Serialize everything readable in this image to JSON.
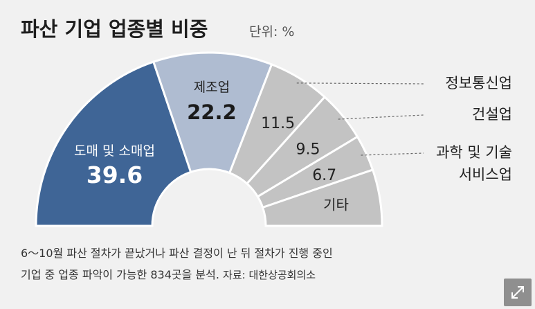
{
  "chart_data": {
    "type": "pie",
    "variant": "semicircle-donut",
    "title": "파산 기업 업종별 비중",
    "unit_label": "단위: %",
    "slices": [
      {
        "name": "도매 및 소매업",
        "value": 39.6,
        "value_label": "39.6",
        "color": "#3f6596",
        "label_style": "inside"
      },
      {
        "name": "제조업",
        "value": 22.2,
        "value_label": "22.2",
        "color": "#afbcd1",
        "label_style": "inside"
      },
      {
        "name": "정보통신업",
        "value": 11.5,
        "value_label": "11.5",
        "color": "#c3c3c3",
        "label_style": "external"
      },
      {
        "name": "건설업",
        "value": 9.5,
        "value_label": "9.5",
        "color": "#c3c3c3",
        "label_style": "external"
      },
      {
        "name": "과학 및 기술 서비스업",
        "name_lines": [
          "과학 및 기술",
          "서비스업"
        ],
        "value": 6.7,
        "value_label": "6.7",
        "color": "#c3c3c3",
        "label_style": "external"
      },
      {
        "name": "기타",
        "value": 10.5,
        "value_label": "",
        "color": "#c3c3c3",
        "label_style": "inside-name"
      }
    ]
  },
  "notes": {
    "line1": "6～10월 파산 절차가 끝났거나 파산 결정이 난 뒤 절차가 진행 중인",
    "line2_main": "기업 중 업종 파악이 가능한 834곳을 분석.",
    "line2_source": "자료: 대한상공회의소"
  },
  "expand_button": {
    "icon": "expand-arrows-icon",
    "color": "#8f8f8f"
  }
}
